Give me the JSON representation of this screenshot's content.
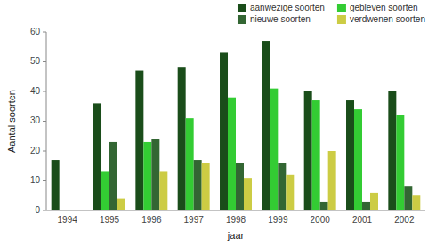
{
  "chart_data": {
    "type": "bar",
    "categories": [
      "1994",
      "1995",
      "1996",
      "1997",
      "1998",
      "1999",
      "2000",
      "2001",
      "2002"
    ],
    "series": [
      {
        "name": "aanwezige soorten",
        "color": "#1a4d1a",
        "values": [
          17,
          36,
          47,
          48,
          53,
          57,
          40,
          37,
          40
        ]
      },
      {
        "name": "gebleven soorten",
        "color": "#33cc33",
        "values": [
          0,
          13,
          23,
          31,
          38,
          41,
          37,
          34,
          32
        ]
      },
      {
        "name": "nieuwe soorten",
        "color": "#336633",
        "values": [
          0,
          23,
          24,
          17,
          16,
          16,
          3,
          3,
          8
        ]
      },
      {
        "name": "verdwenen soorten",
        "color": "#cccc44",
        "values": [
          0,
          4,
          13,
          16,
          11,
          12,
          20,
          6,
          5
        ]
      }
    ],
    "xlabel": "jaar",
    "ylabel": "Aantal soorten",
    "ylim": [
      0,
      60
    ],
    "yticks": [
      0,
      10,
      20,
      30,
      40,
      50,
      60
    ],
    "grid": false,
    "legend": "upper right"
  }
}
